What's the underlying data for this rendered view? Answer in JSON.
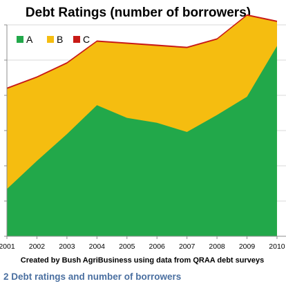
{
  "chart_data": {
    "type": "area",
    "stacked": true,
    "title": "Debt Ratings (number of borrowers)",
    "x": [
      "2001",
      "2002",
      "2003",
      "2004",
      "2005",
      "2006",
      "2007",
      "2008",
      "2009",
      "2010"
    ],
    "xlim": [
      2001,
      2010.3
    ],
    "ylim": [
      0,
      300
    ],
    "ylabel": "",
    "xlabel": "",
    "grid": true,
    "legend": "top-left",
    "series": [
      {
        "name": "A",
        "color": "#22a84a",
        "values": [
          67,
          107,
          145,
          186,
          168,
          161,
          148,
          172,
          198,
          270
        ]
      },
      {
        "name": "B",
        "color": "#f5bd10",
        "values": [
          142,
          118,
          100,
          90,
          105,
          109,
          119,
          107,
          115,
          34
        ]
      },
      {
        "name": "C",
        "color": "#c81a16",
        "values": [
          2,
          2,
          2,
          2,
          2,
          2,
          2,
          2,
          2,
          2
        ]
      }
    ],
    "credit": "Created by Bush AgriBusiness using data from QRAA debt surveys"
  },
  "caption": "2 Debt ratings and number of borrowers"
}
